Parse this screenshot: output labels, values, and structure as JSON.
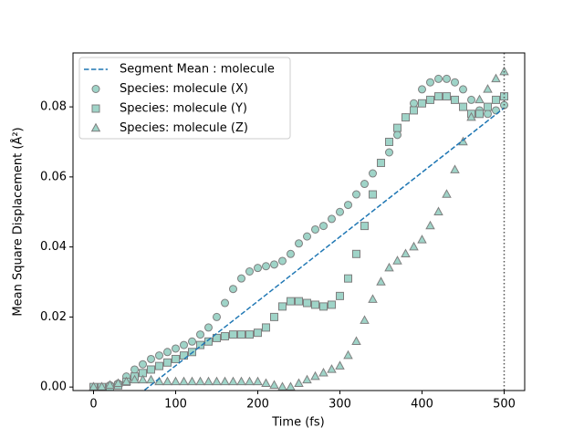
{
  "chart_data": {
    "type": "scatter",
    "xlabel": "Time (fs)",
    "ylabel": "Mean Square Displacement (Å²)",
    "xlim": [
      -25,
      525
    ],
    "ylim": [
      -0.001,
      0.0954
    ],
    "xticks": [
      0,
      100,
      200,
      300,
      400,
      500
    ],
    "yticks": [
      {
        "value": 0,
        "label": "0.00"
      },
      {
        "value": 0.02,
        "label": "0.02"
      },
      {
        "value": 0.04,
        "label": "0.04"
      },
      {
        "value": 0.06,
        "label": "0.06"
      },
      {
        "value": 0.08,
        "label": "0.08"
      }
    ],
    "vline": 500,
    "legend": "upper left",
    "x": [
      0,
      10,
      20,
      30,
      40,
      50,
      60,
      70,
      80,
      90,
      100,
      110,
      120,
      130,
      140,
      150,
      160,
      170,
      180,
      190,
      200,
      210,
      220,
      230,
      240,
      250,
      260,
      270,
      280,
      290,
      300,
      310,
      320,
      330,
      340,
      350,
      360,
      370,
      380,
      390,
      400,
      410,
      420,
      430,
      440,
      450,
      460,
      470,
      480,
      490,
      500
    ],
    "series": [
      {
        "name": "Segment Mean : molecule",
        "kind": "line",
        "color": "#1f77b4",
        "x": [
          0,
          500
        ],
        "values": [
          -0.0123,
          0.0797
        ]
      },
      {
        "name": "Species: molecule (X)",
        "kind": "scatter",
        "marker": "circle",
        "color": "#9fd4c8",
        "edgecolor": "#7f7f7f",
        "values": [
          0,
          0,
          0.0005,
          0.001,
          0.003,
          0.005,
          0.0065,
          0.008,
          0.009,
          0.01,
          0.011,
          0.012,
          0.013,
          0.015,
          0.017,
          0.02,
          0.024,
          0.028,
          0.031,
          0.033,
          0.034,
          0.0345,
          0.035,
          0.036,
          0.038,
          0.041,
          0.043,
          0.045,
          0.046,
          0.048,
          0.05,
          0.052,
          0.055,
          0.058,
          0.061,
          0.064,
          0.067,
          0.072,
          0.077,
          0.081,
          0.085,
          0.087,
          0.088,
          0.088,
          0.087,
          0.085,
          0.082,
          0.079,
          0.078,
          0.079,
          0.0805
        ]
      },
      {
        "name": "Species: molecule (Y)",
        "kind": "scatter",
        "marker": "square",
        "color": "#9fd4c8",
        "edgecolor": "#7f7f7f",
        "values": [
          0,
          0,
          0,
          0.0005,
          0.0015,
          0.003,
          0.004,
          0.005,
          0.006,
          0.007,
          0.008,
          0.009,
          0.01,
          0.012,
          0.013,
          0.014,
          0.0145,
          0.015,
          0.015,
          0.015,
          0.0155,
          0.017,
          0.02,
          0.023,
          0.0245,
          0.0245,
          0.024,
          0.0235,
          0.023,
          0.0235,
          0.026,
          0.031,
          0.038,
          0.046,
          0.055,
          0.064,
          0.07,
          0.074,
          0.077,
          0.079,
          0.081,
          0.082,
          0.083,
          0.083,
          0.082,
          0.08,
          0.078,
          0.078,
          0.08,
          0.082,
          0.083
        ]
      },
      {
        "name": "Species: molecule (Z)",
        "kind": "scatter",
        "marker": "triangle",
        "color": "#9fd4c8",
        "edgecolor": "#7f7f7f",
        "values": [
          0,
          0,
          0.0005,
          0.001,
          0.0015,
          0.002,
          0.002,
          0.002,
          0.0015,
          0.0015,
          0.0015,
          0.0015,
          0.0015,
          0.0015,
          0.0015,
          0.0015,
          0.0015,
          0.0015,
          0.0015,
          0.0015,
          0.0015,
          0.001,
          0.0005,
          0,
          0,
          0.001,
          0.002,
          0.003,
          0.004,
          0.005,
          0.006,
          0.009,
          0.013,
          0.019,
          0.025,
          0.03,
          0.034,
          0.036,
          0.038,
          0.04,
          0.042,
          0.046,
          0.05,
          0.055,
          0.062,
          0.07,
          0.077,
          0.082,
          0.085,
          0.088,
          0.09
        ]
      }
    ]
  }
}
